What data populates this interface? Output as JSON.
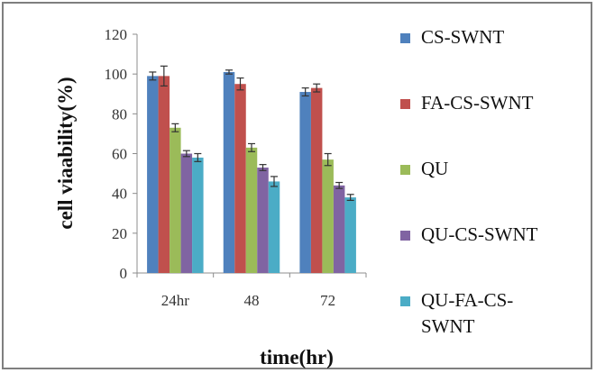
{
  "chart_data": {
    "type": "bar",
    "title": "",
    "xlabel": "time(hr)",
    "ylabel": "cell viaability(%)",
    "categories": [
      "24hr",
      "48",
      "72"
    ],
    "ylim": [
      0,
      120
    ],
    "yticks": [
      0,
      20,
      40,
      60,
      80,
      100,
      120
    ],
    "grid": false,
    "legend_position": "right",
    "error_bars": true,
    "series": [
      {
        "name": "CS-SWNT",
        "color": "#4f81bd",
        "values": [
          99,
          101,
          91
        ],
        "errors": [
          2,
          1,
          2
        ]
      },
      {
        "name": "FA-CS-SWNT",
        "color": "#c0504d",
        "values": [
          99,
          95,
          93
        ],
        "errors": [
          5,
          3,
          2
        ]
      },
      {
        "name": "QU",
        "color": "#9bbb59",
        "values": [
          73,
          63,
          57
        ],
        "errors": [
          2,
          2,
          3
        ]
      },
      {
        "name": "QU-CS-SWNT",
        "color": "#8064a2",
        "values": [
          60,
          53,
          44
        ],
        "errors": [
          1.5,
          1.5,
          1.5
        ]
      },
      {
        "name": "QU-FA-CS-SWNT",
        "color": "#4bacc6",
        "values": [
          58,
          46,
          38
        ],
        "errors": [
          2,
          2.5,
          1.5
        ]
      }
    ],
    "legend_lines": [
      [
        "CS-SWNT"
      ],
      [
        "FA-CS-SWNT"
      ],
      [
        "QU"
      ],
      [
        "QU-CS-SWNT"
      ],
      [
        "QU-FA-CS-",
        "SWNT"
      ]
    ]
  }
}
